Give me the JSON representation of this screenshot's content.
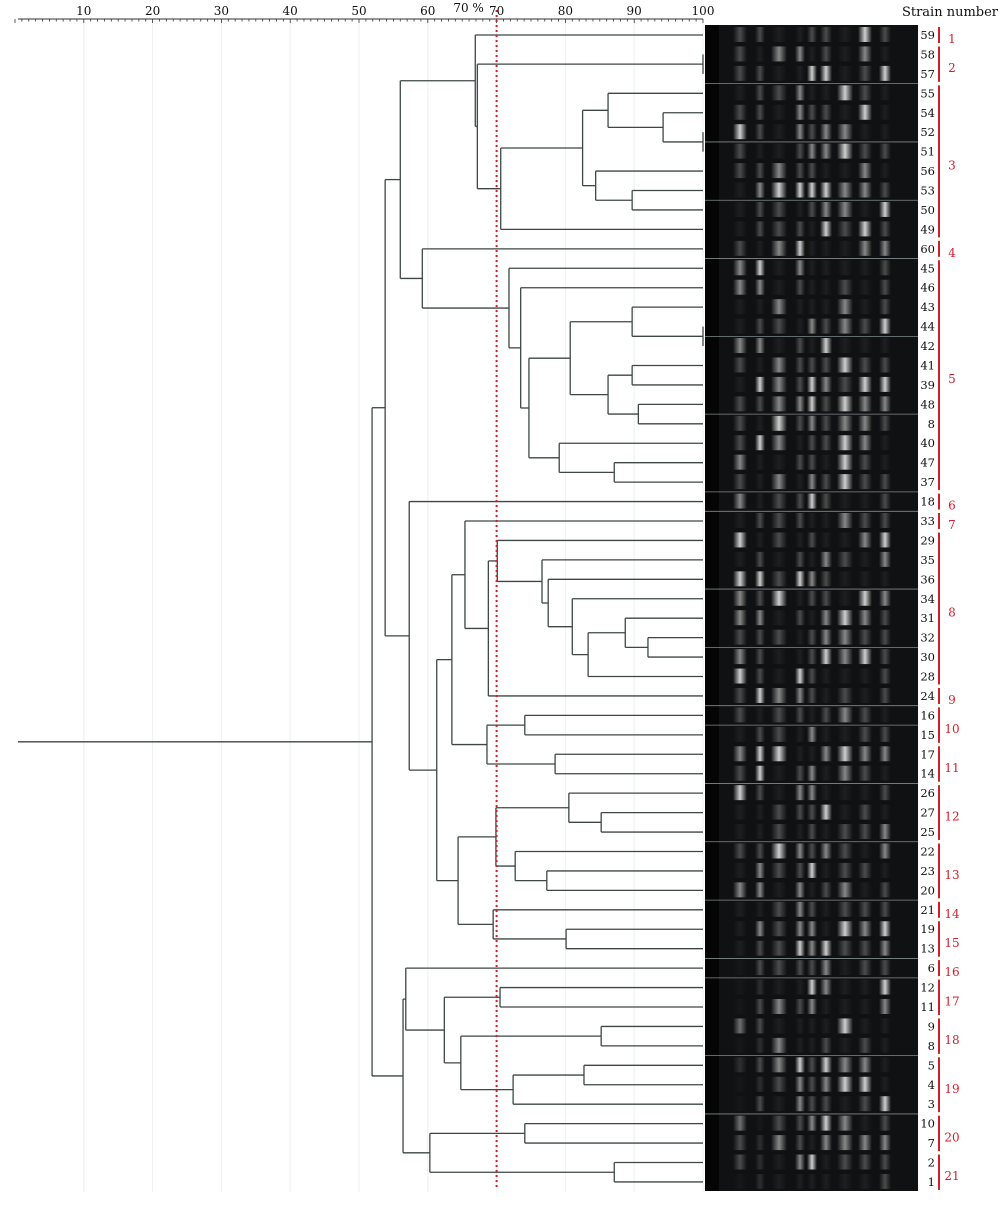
{
  "axis": {
    "min": 0,
    "max": 100,
    "tick_labels": [
      "10",
      "20",
      "30",
      "40",
      "50",
      "60",
      "70",
      "80",
      "90",
      "100"
    ],
    "cutoff_value": 70,
    "cutoff_label": "70 %",
    "cutoff_color": "#d4202c"
  },
  "strain_header": "Strain number",
  "colors": {
    "branch": "#3e4646",
    "cluster": "#d4202c",
    "gel_background": "#101112"
  },
  "strain_order": [
    "59",
    "58",
    "57",
    "55",
    "54",
    "52",
    "51",
    "56",
    "53",
    "50",
    "49",
    "60",
    "45",
    "46",
    "43",
    "44",
    "42",
    "41",
    "39",
    "48",
    "8",
    "40",
    "47",
    "37",
    "18",
    "33",
    "29",
    "35",
    "36",
    "34",
    "31",
    "32",
    "30",
    "28",
    "24",
    "16",
    "15",
    "17",
    "14",
    "26",
    "27",
    "25",
    "22",
    "23",
    "20",
    "21",
    "19",
    "13",
    "6",
    "12",
    "11",
    "9",
    "8",
    "5",
    "4",
    "3",
    "10",
    "7",
    "2",
    "1"
  ],
  "clusters": [
    {
      "label": "1",
      "size": 1
    },
    {
      "label": "2",
      "size": 2
    },
    {
      "label": "3",
      "size": 8
    },
    {
      "label": "4",
      "size": 1
    },
    {
      "label": "5",
      "size": 12
    },
    {
      "label": "6",
      "size": 1
    },
    {
      "label": "7",
      "size": 1
    },
    {
      "label": "8",
      "size": 8
    },
    {
      "label": "9",
      "size": 1
    },
    {
      "label": "10",
      "size": 2
    },
    {
      "label": "11",
      "size": 2
    },
    {
      "label": "12",
      "size": 3
    },
    {
      "label": "13",
      "size": 3
    },
    {
      "label": "14",
      "size": 1
    },
    {
      "label": "15",
      "size": 2
    },
    {
      "label": "16",
      "size": 1
    },
    {
      "label": "17",
      "size": 2
    },
    {
      "label": "18",
      "size": 2
    },
    {
      "label": "19",
      "size": 3
    },
    {
      "label": "20",
      "size": 2
    },
    {
      "label": "21",
      "size": 2
    }
  ],
  "tree": {
    "s": 51.9,
    "c": [
      {
        "s": 53.8,
        "c": [
          {
            "s": 56,
            "c": [
              {
                "s": 66.9,
                "c": [
                  "59",
                  {
                    "s": 67.2,
                    "c": [
                      {
                        "s": 100,
                        "c": [
                          "58",
                          "57"
                        ]
                      },
                      {
                        "s": 70.6,
                        "c": [
                          {
                            "s": 82.5,
                            "c": [
                              {
                                "s": 86.2,
                                "c": [
                                  "55",
                                  {
                                    "s": 94.2,
                                    "c": [
                                      "54",
                                      {
                                        "s": 100,
                                        "c": [
                                          "52",
                                          "51"
                                        ]
                                      }
                                    ]
                                  }
                                ]
                              },
                              {
                                "s": 84.4,
                                "c": [
                                  "56",
                                  {
                                    "s": 89.7,
                                    "c": [
                                      "53",
                                      "50"
                                    ]
                                  }
                                ]
                              }
                            ]
                          },
                          "49"
                        ]
                      }
                    ]
                  }
                ]
              },
              {
                "s": 59.2,
                "c": [
                  "60",
                  {
                    "s": 71.8,
                    "c": [
                      "45",
                      {
                        "s": 73.5,
                        "c": [
                          "46",
                          {
                            "s": 74.7,
                            "c": [
                              {
                                "s": 80.7,
                                "c": [
                                  {
                                    "s": 89.7,
                                    "c": [
                                      "43",
                                      {
                                        "s": 100,
                                        "c": [
                                          "44",
                                          "42"
                                        ]
                                      }
                                    ]
                                  },
                                  {
                                    "s": 86.2,
                                    "c": [
                                      {
                                        "s": 89.7,
                                        "c": [
                                          "41",
                                          "39"
                                        ]
                                      },
                                      {
                                        "s": 90.6,
                                        "c": [
                                          "48",
                                          "8"
                                        ]
                                      }
                                    ]
                                  }
                                ]
                              },
                              {
                                "s": 79.1,
                                "c": [
                                  "40",
                                  {
                                    "s": 87.1,
                                    "c": [
                                      "47",
                                      "37"
                                    ]
                                  }
                                ]
                              }
                            ]
                          }
                        ]
                      }
                    ]
                  }
                ]
              }
            ]
          },
          {
            "s": 57.3,
            "c": [
              "18",
              {
                "s": 61.3,
                "c": [
                  {
                    "s": 63.5,
                    "c": [
                      {
                        "s": 65.4,
                        "c": [
                          "33",
                          {
                            "s": 68.8,
                            "c": [
                              {
                                "s": 70.1,
                                "c": [
                                  "29",
                                  {
                                    "s": 76.6,
                                    "c": [
                                      "35",
                                      {
                                        "s": 77.5,
                                        "c": [
                                          "36",
                                          {
                                            "s": 81,
                                            "c": [
                                              "34",
                                              {
                                                "s": 83.3,
                                                "c": [
                                                  {
                                                    "s": 88.7,
                                                    "c": [
                                                      "31",
                                                      {
                                                        "s": 92,
                                                        "c": [
                                                          "32",
                                                          "30"
                                                        ]
                                                      }
                                                    ]
                                                  },
                                                  "28"
                                                ]
                                              }
                                            ]
                                          }
                                        ]
                                      }
                                    ]
                                  }
                                ]
                              },
                              "24"
                            ]
                          }
                        ]
                      },
                      {
                        "s": 68.6,
                        "c": [
                          {
                            "s": 74.1,
                            "c": [
                              "16",
                              "15"
                            ]
                          },
                          {
                            "s": 78.5,
                            "c": [
                              "17",
                              "14"
                            ]
                          }
                        ]
                      }
                    ]
                  },
                  {
                    "s": 64.4,
                    "c": [
                      {
                        "s": 69.9,
                        "c": [
                          {
                            "s": 80.5,
                            "c": [
                              "26",
                              {
                                "s": 85.2,
                                "c": [
                                  "27",
                                  "25"
                                ]
                              }
                            ]
                          },
                          {
                            "s": 72.7,
                            "c": [
                              "22",
                              {
                                "s": 77.3,
                                "c": [
                                  "23",
                                  "20"
                                ]
                              }
                            ]
                          }
                        ]
                      },
                      {
                        "s": 69.5,
                        "c": [
                          "21",
                          {
                            "s": 80.1,
                            "c": [
                              "19",
                              "13"
                            ]
                          }
                        ]
                      }
                    ]
                  }
                ]
              }
            ]
          }
        ]
      },
      {
        "s": 56.4,
        "c": [
          {
            "s": 56.8,
            "c": [
              "6",
              {
                "s": 62.4,
                "c": [
                  {
                    "s": 70.5,
                    "c": [
                      "12",
                      "11"
                    ]
                  },
                  {
                    "s": 64.8,
                    "c": [
                      {
                        "s": 85.2,
                        "c": [
                          "9",
                          "8"
                        ]
                      },
                      {
                        "s": 72.4,
                        "c": [
                          {
                            "s": 82.7,
                            "c": [
                              "5",
                              "4"
                            ]
                          },
                          "3"
                        ]
                      }
                    ]
                  }
                ]
              }
            ]
          },
          {
            "s": 60.3,
            "c": [
              {
                "s": 74.1,
                "c": [
                  "10",
                  "7"
                ]
              },
              {
                "s": 87.1,
                "c": [
                  "2",
                  "1"
                ]
              }
            ]
          }
        ]
      }
    ]
  }
}
